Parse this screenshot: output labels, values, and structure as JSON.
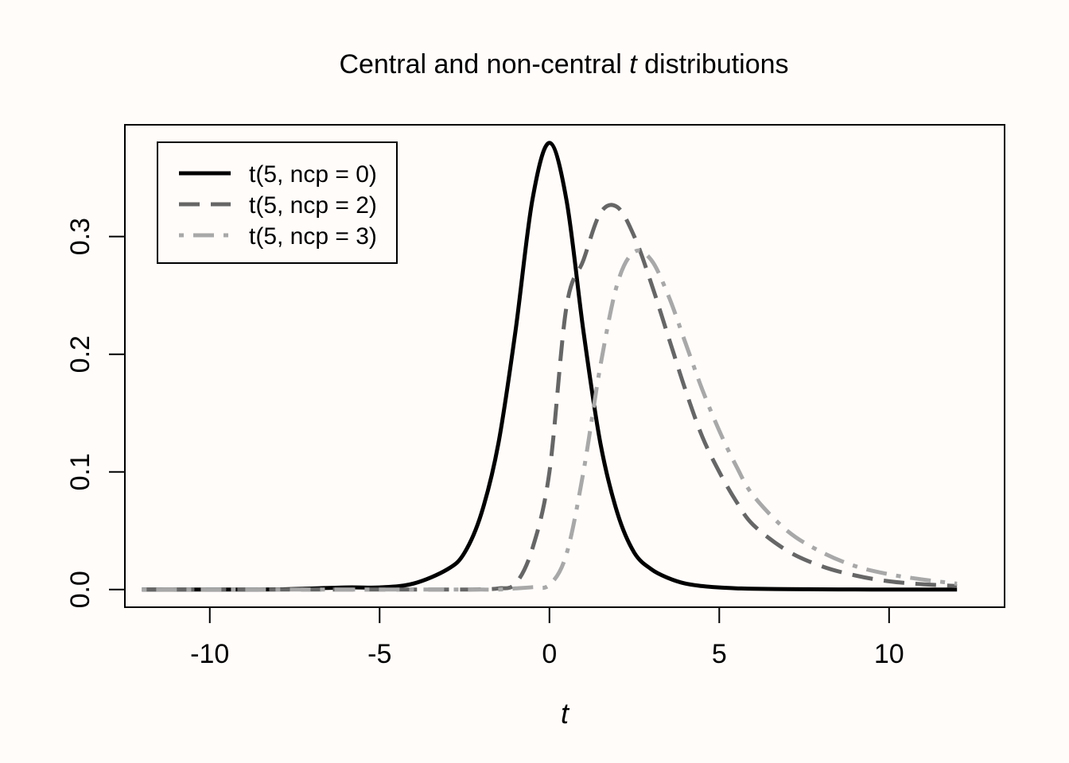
{
  "chart_data": {
    "type": "line",
    "title": {
      "prefix": "Central and non-central ",
      "italic": "t",
      "suffix": " distributions"
    },
    "xlabel": "t",
    "ylabel": "",
    "xlim": [
      -12.5,
      13.4
    ],
    "ylim": [
      -0.015,
      0.395
    ],
    "xticks": [
      -10,
      -5,
      0,
      5,
      10
    ],
    "xtick_labels": [
      "-10",
      "-5",
      "0",
      "5",
      "10"
    ],
    "yticks": [
      0.0,
      0.1,
      0.2,
      0.3
    ],
    "ytick_labels": [
      "0.0",
      "0.1",
      "0.2",
      "0.3"
    ],
    "grid": false,
    "legend_position": "top-left",
    "x": [
      -12,
      -10,
      -8,
      -6,
      -5,
      -4,
      -3,
      -2.5,
      -2,
      -1.5,
      -1,
      -0.5,
      0,
      0.5,
      1,
      1.5,
      2,
      2.5,
      3,
      3.5,
      4,
      4.5,
      5,
      5.5,
      6,
      7,
      8,
      9,
      10,
      11,
      12
    ],
    "series": [
      {
        "name": "t(5, ncp = 0)",
        "color": "#000000",
        "dash": "solid",
        "values": [
          0.0,
          0.0,
          0.0002,
          0.0018,
          0.0018,
          0.0051,
          0.0173,
          0.0313,
          0.0651,
          0.1245,
          0.2197,
          0.3314,
          0.3796,
          0.3314,
          0.2197,
          0.1245,
          0.0651,
          0.0313,
          0.0173,
          0.0098,
          0.0051,
          0.003,
          0.0018,
          0.0011,
          0.0007,
          0.0004,
          0.0002,
          0.0001,
          0.0,
          0.0,
          0.0
        ]
      },
      {
        "name": "t(5, ncp = 2)",
        "color": "#666666",
        "dash": "dashed",
        "values": [
          0.0,
          0.0,
          0.0,
          0.0,
          0.0,
          0.0,
          0.0,
          0.0,
          0.0002,
          0.001,
          0.005,
          0.035,
          0.1,
          0.24,
          0.28,
          0.32,
          0.325,
          0.3,
          0.26,
          0.215,
          0.17,
          0.13,
          0.1,
          0.075,
          0.055,
          0.033,
          0.02,
          0.012,
          0.007,
          0.0045,
          0.003
        ]
      },
      {
        "name": "t(5, ncp = 3)",
        "color": "#a8a8a8",
        "dash": "dotdash",
        "values": [
          0.0,
          0.0,
          0.0,
          0.0,
          0.0,
          0.0,
          0.0,
          0.0,
          0.0,
          0.0,
          0.001,
          0.002,
          0.004,
          0.03,
          0.1,
          0.19,
          0.26,
          0.287,
          0.28,
          0.25,
          0.21,
          0.17,
          0.135,
          0.105,
          0.08,
          0.05,
          0.032,
          0.02,
          0.013,
          0.0085,
          0.005
        ]
      }
    ]
  }
}
